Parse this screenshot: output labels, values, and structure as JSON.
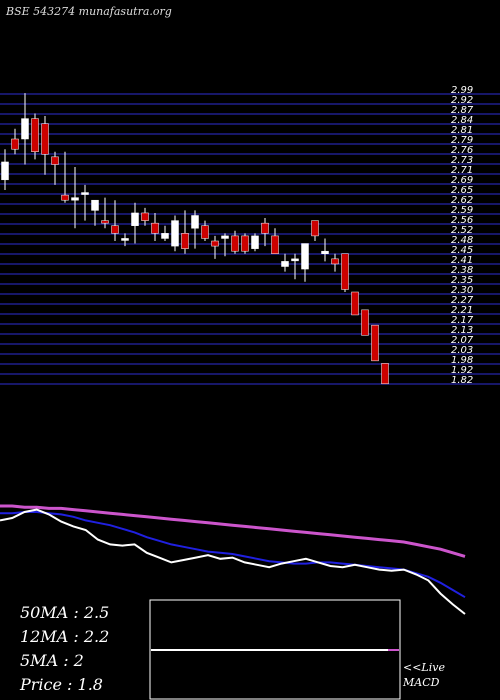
{
  "header": {
    "source": "BSE 543274  munafasutra.org"
  },
  "footer": {
    "ma50": "50MA : 2.5",
    "ma12": "12MA : 2.2",
    "ma5": "5MA : 2",
    "price": "Price   : 1.8",
    "live": "<<Live",
    "macd": "MACD"
  },
  "colors": {
    "background": "#000000",
    "grid": "#1f1f8c",
    "up_candle": "#ffffff",
    "down_candle": "#cc0000",
    "ma_long": "#cc55cc",
    "ma_mid": "#2020e0",
    "ma_short": "#ffffff"
  },
  "chart_data": [
    {
      "type": "candlestick",
      "title": "",
      "price_labels": [
        "2.99",
        "2.92",
        "2.87",
        "2.84",
        "2.81",
        "2.79",
        "2.76",
        "2.73",
        "2.71",
        "2.69",
        "2.65",
        "2.62",
        "2.59",
        "2.56",
        "2.52",
        "2.48",
        "2.45",
        "2.41",
        "2.38",
        "2.35",
        "2.30",
        "2.27",
        "2.21",
        "2.17",
        "2.13",
        "2.07",
        "2.03",
        "1.98",
        "1.92",
        "1.82"
      ],
      "ylim": [
        1.8,
        3.0
      ],
      "candles": [
        {
          "o": 2.64,
          "h": 2.76,
          "l": 2.6,
          "c": 2.71
        },
        {
          "o": 2.8,
          "h": 2.84,
          "l": 2.74,
          "c": 2.76
        },
        {
          "o": 2.8,
          "h": 2.98,
          "l": 2.7,
          "c": 2.88
        },
        {
          "o": 2.88,
          "h": 2.9,
          "l": 2.72,
          "c": 2.75
        },
        {
          "o": 2.86,
          "h": 2.89,
          "l": 2.66,
          "c": 2.74
        },
        {
          "o": 2.73,
          "h": 2.75,
          "l": 2.62,
          "c": 2.7
        },
        {
          "o": 2.58,
          "h": 2.75,
          "l": 2.55,
          "c": 2.56
        },
        {
          "o": 2.56,
          "h": 2.69,
          "l": 2.45,
          "c": 2.57
        },
        {
          "o": 2.59,
          "h": 2.62,
          "l": 2.48,
          "c": 2.59
        },
        {
          "o": 2.52,
          "h": 2.56,
          "l": 2.46,
          "c": 2.56
        },
        {
          "o": 2.48,
          "h": 2.57,
          "l": 2.45,
          "c": 2.47
        },
        {
          "o": 2.46,
          "h": 2.56,
          "l": 2.4,
          "c": 2.43
        },
        {
          "o": 2.41,
          "h": 2.43,
          "l": 2.38,
          "c": 2.41
        },
        {
          "o": 2.46,
          "h": 2.55,
          "l": 2.39,
          "c": 2.51
        },
        {
          "o": 2.51,
          "h": 2.53,
          "l": 2.46,
          "c": 2.48
        },
        {
          "o": 2.47,
          "h": 2.51,
          "l": 2.4,
          "c": 2.43
        },
        {
          "o": 2.41,
          "h": 2.46,
          "l": 2.4,
          "c": 2.43
        },
        {
          "o": 2.38,
          "h": 2.5,
          "l": 2.36,
          "c": 2.48
        },
        {
          "o": 2.43,
          "h": 2.52,
          "l": 2.35,
          "c": 2.37
        },
        {
          "o": 2.45,
          "h": 2.52,
          "l": 2.37,
          "c": 2.5
        },
        {
          "o": 2.46,
          "h": 2.48,
          "l": 2.4,
          "c": 2.41
        },
        {
          "o": 2.4,
          "h": 2.42,
          "l": 2.33,
          "c": 2.38
        },
        {
          "o": 2.41,
          "h": 2.43,
          "l": 2.34,
          "c": 2.42
        },
        {
          "o": 2.42,
          "h": 2.44,
          "l": 2.35,
          "c": 2.36
        },
        {
          "o": 2.42,
          "h": 2.43,
          "l": 2.35,
          "c": 2.36
        },
        {
          "o": 2.37,
          "h": 2.43,
          "l": 2.36,
          "c": 2.42
        },
        {
          "o": 2.47,
          "h": 2.49,
          "l": 2.38,
          "c": 2.43
        },
        {
          "o": 2.42,
          "h": 2.45,
          "l": 2.35,
          "c": 2.35
        },
        {
          "o": 2.3,
          "h": 2.35,
          "l": 2.28,
          "c": 2.32
        },
        {
          "o": 2.33,
          "h": 2.35,
          "l": 2.25,
          "c": 2.33
        },
        {
          "o": 2.29,
          "h": 2.39,
          "l": 2.24,
          "c": 2.39
        },
        {
          "o": 2.48,
          "h": 2.48,
          "l": 2.4,
          "c": 2.42
        },
        {
          "o": 2.35,
          "h": 2.41,
          "l": 2.32,
          "c": 2.36
        },
        {
          "o": 2.33,
          "h": 2.35,
          "l": 2.28,
          "c": 2.31
        },
        {
          "o": 2.35,
          "h": 2.35,
          "l": 2.2,
          "c": 2.21
        },
        {
          "o": 2.2,
          "h": 2.2,
          "l": 2.11,
          "c": 2.11
        },
        {
          "o": 2.13,
          "h": 2.13,
          "l": 2.03,
          "c": 2.03
        },
        {
          "o": 2.07,
          "h": 2.07,
          "l": 1.93,
          "c": 1.93
        },
        {
          "o": 1.92,
          "h": 1.92,
          "l": 1.84,
          "c": 1.84
        }
      ]
    },
    {
      "type": "line",
      "series": [
        {
          "values": [
            2.8,
            2.8,
            2.79,
            2.79,
            2.78,
            2.78,
            2.77,
            2.76,
            2.75,
            2.74,
            2.73,
            2.72,
            2.71,
            2.7,
            2.69,
            2.68,
            2.67,
            2.66,
            2.65,
            2.64,
            2.63,
            2.62,
            2.61,
            2.6,
            2.59,
            2.58,
            2.57,
            2.56,
            2.55,
            2.54,
            2.53,
            2.52,
            2.51,
            2.5,
            2.48,
            2.46,
            2.44,
            2.41,
            2.38
          ]
        },
        {
          "values": [
            2.74,
            2.74,
            2.75,
            2.75,
            2.74,
            2.73,
            2.71,
            2.68,
            2.66,
            2.64,
            2.61,
            2.58,
            2.54,
            2.51,
            2.48,
            2.46,
            2.44,
            2.42,
            2.41,
            2.4,
            2.38,
            2.36,
            2.34,
            2.33,
            2.32,
            2.32,
            2.33,
            2.33,
            2.32,
            2.31,
            2.3,
            2.29,
            2.28,
            2.27,
            2.24,
            2.21,
            2.16,
            2.1,
            2.04
          ]
        },
        {
          "values": [
            2.68,
            2.7,
            2.75,
            2.77,
            2.73,
            2.67,
            2.63,
            2.6,
            2.52,
            2.48,
            2.47,
            2.48,
            2.41,
            2.37,
            2.33,
            2.35,
            2.37,
            2.39,
            2.36,
            2.37,
            2.33,
            2.31,
            2.29,
            2.32,
            2.34,
            2.36,
            2.33,
            2.3,
            2.29,
            2.31,
            2.29,
            2.27,
            2.26,
            2.27,
            2.23,
            2.18,
            2.07,
            1.98,
            1.9
          ]
        }
      ]
    }
  ]
}
